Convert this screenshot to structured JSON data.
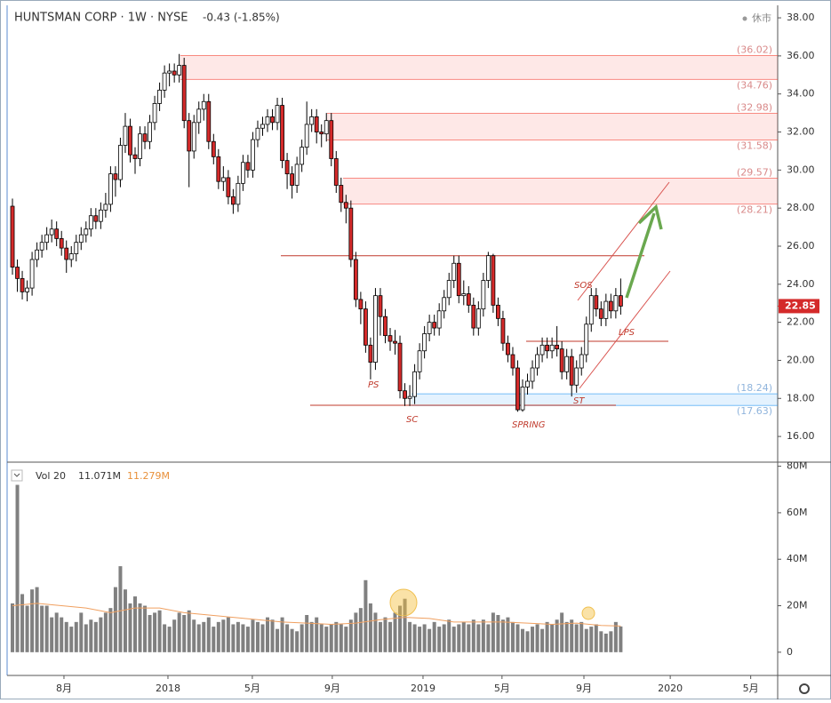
{
  "chart_data": {
    "type": "candlestick",
    "title": "HUNTSMAN CORP · 1W · NYSE",
    "change_label": "-0.43 (-1.85%)",
    "status": "休市",
    "up_color": "#ffffff",
    "down_color": "#d42a2a",
    "outline_color": "#000000",
    "open": [
      28.1,
      24.9,
      24.3,
      23.6,
      23.8,
      25.3,
      25.8,
      26.2,
      26.6,
      26.9,
      26.4,
      25.9,
      25.3,
      25.6,
      26.2,
      26.6,
      26.9,
      27.6,
      27.3,
      27.9,
      28.2,
      29.8,
      29.5,
      31.3,
      32.3,
      30.8,
      30.6,
      31.9,
      31.5,
      32.5,
      33.5,
      34.2,
      35.1,
      35.2,
      35.0,
      35.5,
      32.6,
      31.0,
      32.5,
      33.2,
      33.6,
      31.5,
      30.7,
      29.4,
      29.6,
      28.6,
      28.2,
      29.3,
      30.4,
      30.0,
      31.6,
      32.2,
      32.4,
      32.8,
      32.5,
      33.4,
      30.5,
      29.8,
      29.2,
      30.3,
      31.2,
      32.4,
      32.8,
      32.0,
      31.9,
      32.6,
      30.6,
      29.2,
      28.3,
      28.0,
      25.3,
      23.2,
      22.7,
      20.8,
      19.9,
      23.4,
      22.3,
      21.3,
      21.0,
      20.9,
      18.4,
      18.0,
      18.1,
      19.4,
      20.5,
      21.4,
      22.0,
      21.7,
      22.6,
      23.3,
      24.2,
      25.1,
      23.4,
      23.5,
      22.9,
      21.7,
      22.7,
      24.2,
      25.5,
      22.9,
      22.2,
      20.9,
      20.3,
      19.6,
      17.4,
      18.6,
      18.9,
      19.6,
      20.3,
      20.8,
      20.5,
      20.8,
      20.6,
      19.4,
      20.2,
      18.7,
      19.6,
      20.3,
      21.9,
      23.4,
      22.7,
      22.2,
      23.1,
      22.6,
      23.4
    ],
    "high": [
      28.5,
      25.3,
      24.7,
      24.2,
      25.7,
      26.2,
      26.6,
      27.0,
      27.4,
      27.3,
      26.8,
      26.3,
      26.0,
      26.6,
      27.0,
      27.3,
      28.0,
      28.0,
      28.3,
      28.8,
      30.2,
      30.2,
      31.7,
      33.0,
      32.7,
      31.2,
      32.3,
      32.3,
      32.9,
      33.9,
      34.6,
      35.5,
      35.6,
      35.6,
      36.1,
      35.9,
      33.0,
      32.9,
      33.6,
      34.0,
      34.0,
      31.9,
      31.1,
      30.2,
      30.0,
      29.0,
      29.7,
      30.8,
      30.8,
      32.0,
      32.6,
      32.8,
      33.2,
      33.2,
      33.8,
      33.8,
      30.9,
      30.2,
      30.7,
      31.6,
      33.6,
      33.2,
      33.2,
      32.4,
      33.0,
      33.0,
      31.0,
      29.6,
      28.7,
      28.4,
      25.7,
      23.6,
      23.1,
      21.2,
      23.8,
      23.8,
      22.7,
      21.7,
      21.6,
      21.3,
      18.8,
      18.7,
      19.8,
      20.9,
      21.8,
      22.4,
      22.4,
      23.0,
      23.7,
      24.6,
      25.5,
      25.5,
      24.2,
      23.9,
      23.3,
      23.1,
      24.6,
      25.7,
      25.6,
      23.3,
      22.6,
      21.3,
      20.7,
      20.0,
      19.0,
      19.3,
      20.0,
      20.7,
      21.2,
      21.2,
      21.2,
      21.8,
      21.0,
      20.6,
      20.6,
      20.0,
      20.7,
      22.3,
      23.8,
      23.8,
      23.1,
      23.5,
      23.5,
      23.8,
      24.3
    ],
    "low": [
      24.5,
      23.6,
      23.2,
      23.1,
      23.4,
      24.9,
      25.4,
      25.8,
      26.2,
      26.0,
      25.5,
      24.6,
      24.9,
      25.2,
      25.8,
      26.2,
      26.5,
      26.9,
      26.9,
      27.5,
      27.8,
      28.6,
      29.1,
      30.9,
      30.4,
      29.8,
      30.2,
      31.1,
      31.1,
      32.1,
      33.1,
      33.8,
      34.4,
      34.6,
      34.6,
      32.2,
      29.1,
      30.6,
      31.9,
      32.6,
      31.1,
      30.3,
      29.0,
      28.9,
      28.2,
      27.7,
      27.8,
      28.9,
      29.6,
      29.6,
      31.2,
      31.8,
      32.0,
      32.1,
      32.1,
      30.1,
      29.0,
      28.5,
      28.8,
      29.9,
      30.8,
      32.0,
      31.4,
      31.2,
      31.5,
      30.2,
      28.8,
      27.8,
      27.2,
      24.9,
      22.8,
      21.9,
      20.4,
      19.0,
      19.5,
      21.3,
      20.9,
      20.5,
      20.3,
      18.0,
      17.6,
      17.6,
      17.7,
      19.0,
      20.1,
      21.0,
      21.3,
      21.3,
      22.2,
      22.9,
      23.8,
      23.0,
      22.9,
      22.5,
      21.3,
      21.3,
      22.3,
      23.8,
      22.5,
      21.8,
      20.5,
      19.9,
      19.2,
      17.3,
      17.3,
      18.2,
      18.5,
      19.2,
      19.9,
      20.1,
      20.1,
      20.2,
      19.0,
      19.0,
      18.1,
      18.3,
      19.2,
      19.9,
      21.5,
      22.3,
      21.8,
      21.8,
      22.2,
      22.2,
      22.4
    ],
    "close": [
      24.9,
      24.3,
      23.6,
      23.8,
      25.3,
      25.8,
      26.2,
      26.6,
      26.9,
      26.4,
      25.9,
      25.3,
      25.6,
      26.2,
      26.6,
      26.9,
      27.6,
      27.3,
      27.9,
      28.2,
      29.8,
      29.5,
      31.3,
      32.3,
      30.8,
      30.6,
      31.9,
      31.5,
      32.5,
      33.5,
      34.2,
      35.1,
      35.2,
      35.0,
      35.5,
      32.6,
      31.0,
      32.5,
      33.2,
      33.6,
      31.5,
      30.7,
      29.4,
      29.6,
      28.6,
      28.2,
      29.3,
      30.4,
      30.0,
      31.6,
      32.2,
      32.4,
      32.8,
      32.5,
      33.4,
      30.5,
      29.8,
      29.2,
      30.3,
      31.2,
      32.4,
      32.8,
      32.0,
      31.9,
      32.6,
      30.6,
      29.2,
      28.3,
      28.0,
      25.3,
      23.2,
      22.7,
      20.8,
      19.9,
      23.4,
      22.3,
      21.3,
      21.0,
      20.9,
      18.4,
      18.0,
      18.1,
      19.4,
      20.5,
      21.4,
      22.0,
      21.7,
      22.6,
      23.3,
      24.2,
      25.1,
      23.4,
      23.5,
      22.9,
      21.7,
      22.7,
      24.2,
      25.5,
      22.9,
      22.2,
      20.9,
      20.3,
      19.6,
      17.4,
      18.6,
      18.9,
      19.6,
      20.3,
      20.8,
      20.5,
      20.8,
      20.6,
      19.4,
      20.2,
      18.7,
      19.6,
      20.3,
      21.9,
      23.4,
      22.7,
      22.2,
      23.1,
      22.6,
      23.4,
      22.85
    ],
    "ylim": [
      14.65,
      38.61
    ],
    "yticks": [
      {
        "value": 16,
        "label": "16.00"
      },
      {
        "value": 18,
        "label": "18.00"
      },
      {
        "value": 20,
        "label": "20.00"
      },
      {
        "value": 22,
        "label": "22.00"
      },
      {
        "value": 24,
        "label": "24.00"
      },
      {
        "value": 26,
        "label": "26.00"
      },
      {
        "value": 28,
        "label": "28.00"
      },
      {
        "value": 30,
        "label": "30.00"
      },
      {
        "value": 32,
        "label": "32.00"
      },
      {
        "value": 34,
        "label": "34.00"
      },
      {
        "value": 36,
        "label": "36.00"
      },
      {
        "value": 38,
        "label": "38.00"
      }
    ],
    "xlim": [
      -1.09,
      156
    ],
    "xticks": [
      {
        "value": 10.5,
        "label": "8月"
      },
      {
        "value": 31.7,
        "label": "2018"
      },
      {
        "value": 48.9,
        "label": "5月"
      },
      {
        "value": 65.2,
        "label": "9月"
      },
      {
        "value": 83.7,
        "label": "2019"
      },
      {
        "value": 99.8,
        "label": "5月"
      },
      {
        "value": 116.5,
        "label": "9月"
      },
      {
        "value": 134.1,
        "label": "2020"
      },
      {
        "value": 150.5,
        "label": "5月"
      }
    ],
    "zones": [
      {
        "top": {
          "value": 36.02,
          "label": "(36.02)"
        },
        "bottom": {
          "value": 34.76,
          "label": "(34.76)"
        },
        "color": "#f44336"
      },
      {
        "top": {
          "value": 32.98,
          "label": "(32.98)"
        },
        "bottom": {
          "value": 31.58,
          "label": "(31.58)"
        },
        "color": "#f44336"
      },
      {
        "top": {
          "value": 29.57,
          "label": "(29.57)"
        },
        "bottom": {
          "value": 28.21,
          "label": "(28.21)"
        },
        "color": "#f44336"
      },
      {
        "top": {
          "value": 18.24,
          "label": "(18.24)"
        },
        "bottom": {
          "value": 17.63,
          "label": "(17.63)"
        },
        "color": "#2196f3"
      }
    ],
    "levels": [
      25.5,
      21.0,
      17.64
    ],
    "annotations": [
      "PS",
      "SC",
      "SPRING",
      "ST",
      "SOS",
      "LPS"
    ],
    "volume": {
      "name": "Vol 20",
      "last_label": "11.071M",
      "ma_label": "11.279M",
      "color": "#808080",
      "ma_color": "#f0a060",
      "values": [
        21,
        72,
        25,
        20,
        27,
        28,
        20,
        20,
        15,
        17,
        15,
        13,
        11,
        13,
        17,
        12,
        14,
        13,
        15,
        17,
        19,
        28,
        37,
        27,
        21,
        24,
        21,
        20,
        16,
        17,
        18,
        12,
        11,
        14,
        17,
        16,
        18,
        14,
        12,
        13,
        15,
        11,
        13,
        14,
        15,
        12,
        13,
        12,
        11,
        14,
        13,
        12,
        15,
        14,
        10,
        15,
        12,
        10,
        9,
        12,
        16,
        13,
        15,
        12,
        11,
        12,
        13,
        12,
        11,
        14,
        17,
        19,
        31,
        21,
        17,
        13,
        15,
        13,
        17,
        20,
        23,
        13,
        12,
        11,
        12,
        10,
        13,
        11,
        12,
        14,
        11,
        12,
        13,
        12,
        14,
        12,
        14,
        12,
        17,
        16,
        14,
        15,
        13,
        12,
        10,
        9,
        11,
        12,
        10,
        13,
        12,
        14,
        17,
        13,
        14,
        12,
        13,
        10,
        11,
        12,
        9,
        8,
        9,
        13,
        11.071
      ],
      "ma_x": [
        0,
        5,
        10,
        15,
        20,
        25,
        30,
        35,
        40,
        45,
        50,
        55,
        60,
        65,
        70,
        75,
        80,
        85,
        90,
        95,
        100,
        105,
        110,
        115,
        120,
        124
      ],
      "ma_values": [
        20,
        21,
        20,
        19,
        17,
        19,
        19,
        17,
        16,
        15,
        14,
        13,
        12.5,
        12,
        12.5,
        14,
        15,
        14.5,
        13,
        13,
        13,
        12.5,
        12,
        12.5,
        11.5,
        11.279
      ],
      "ylim": [
        -10,
        81
      ],
      "yticks": [
        0,
        {
          "value": 20,
          "label": "20M"
        },
        {
          "value": 40,
          "label": "40M"
        },
        {
          "value": 60,
          "label": "60M"
        },
        {
          "value": 80,
          "label": "80M"
        }
      ]
    }
  }
}
